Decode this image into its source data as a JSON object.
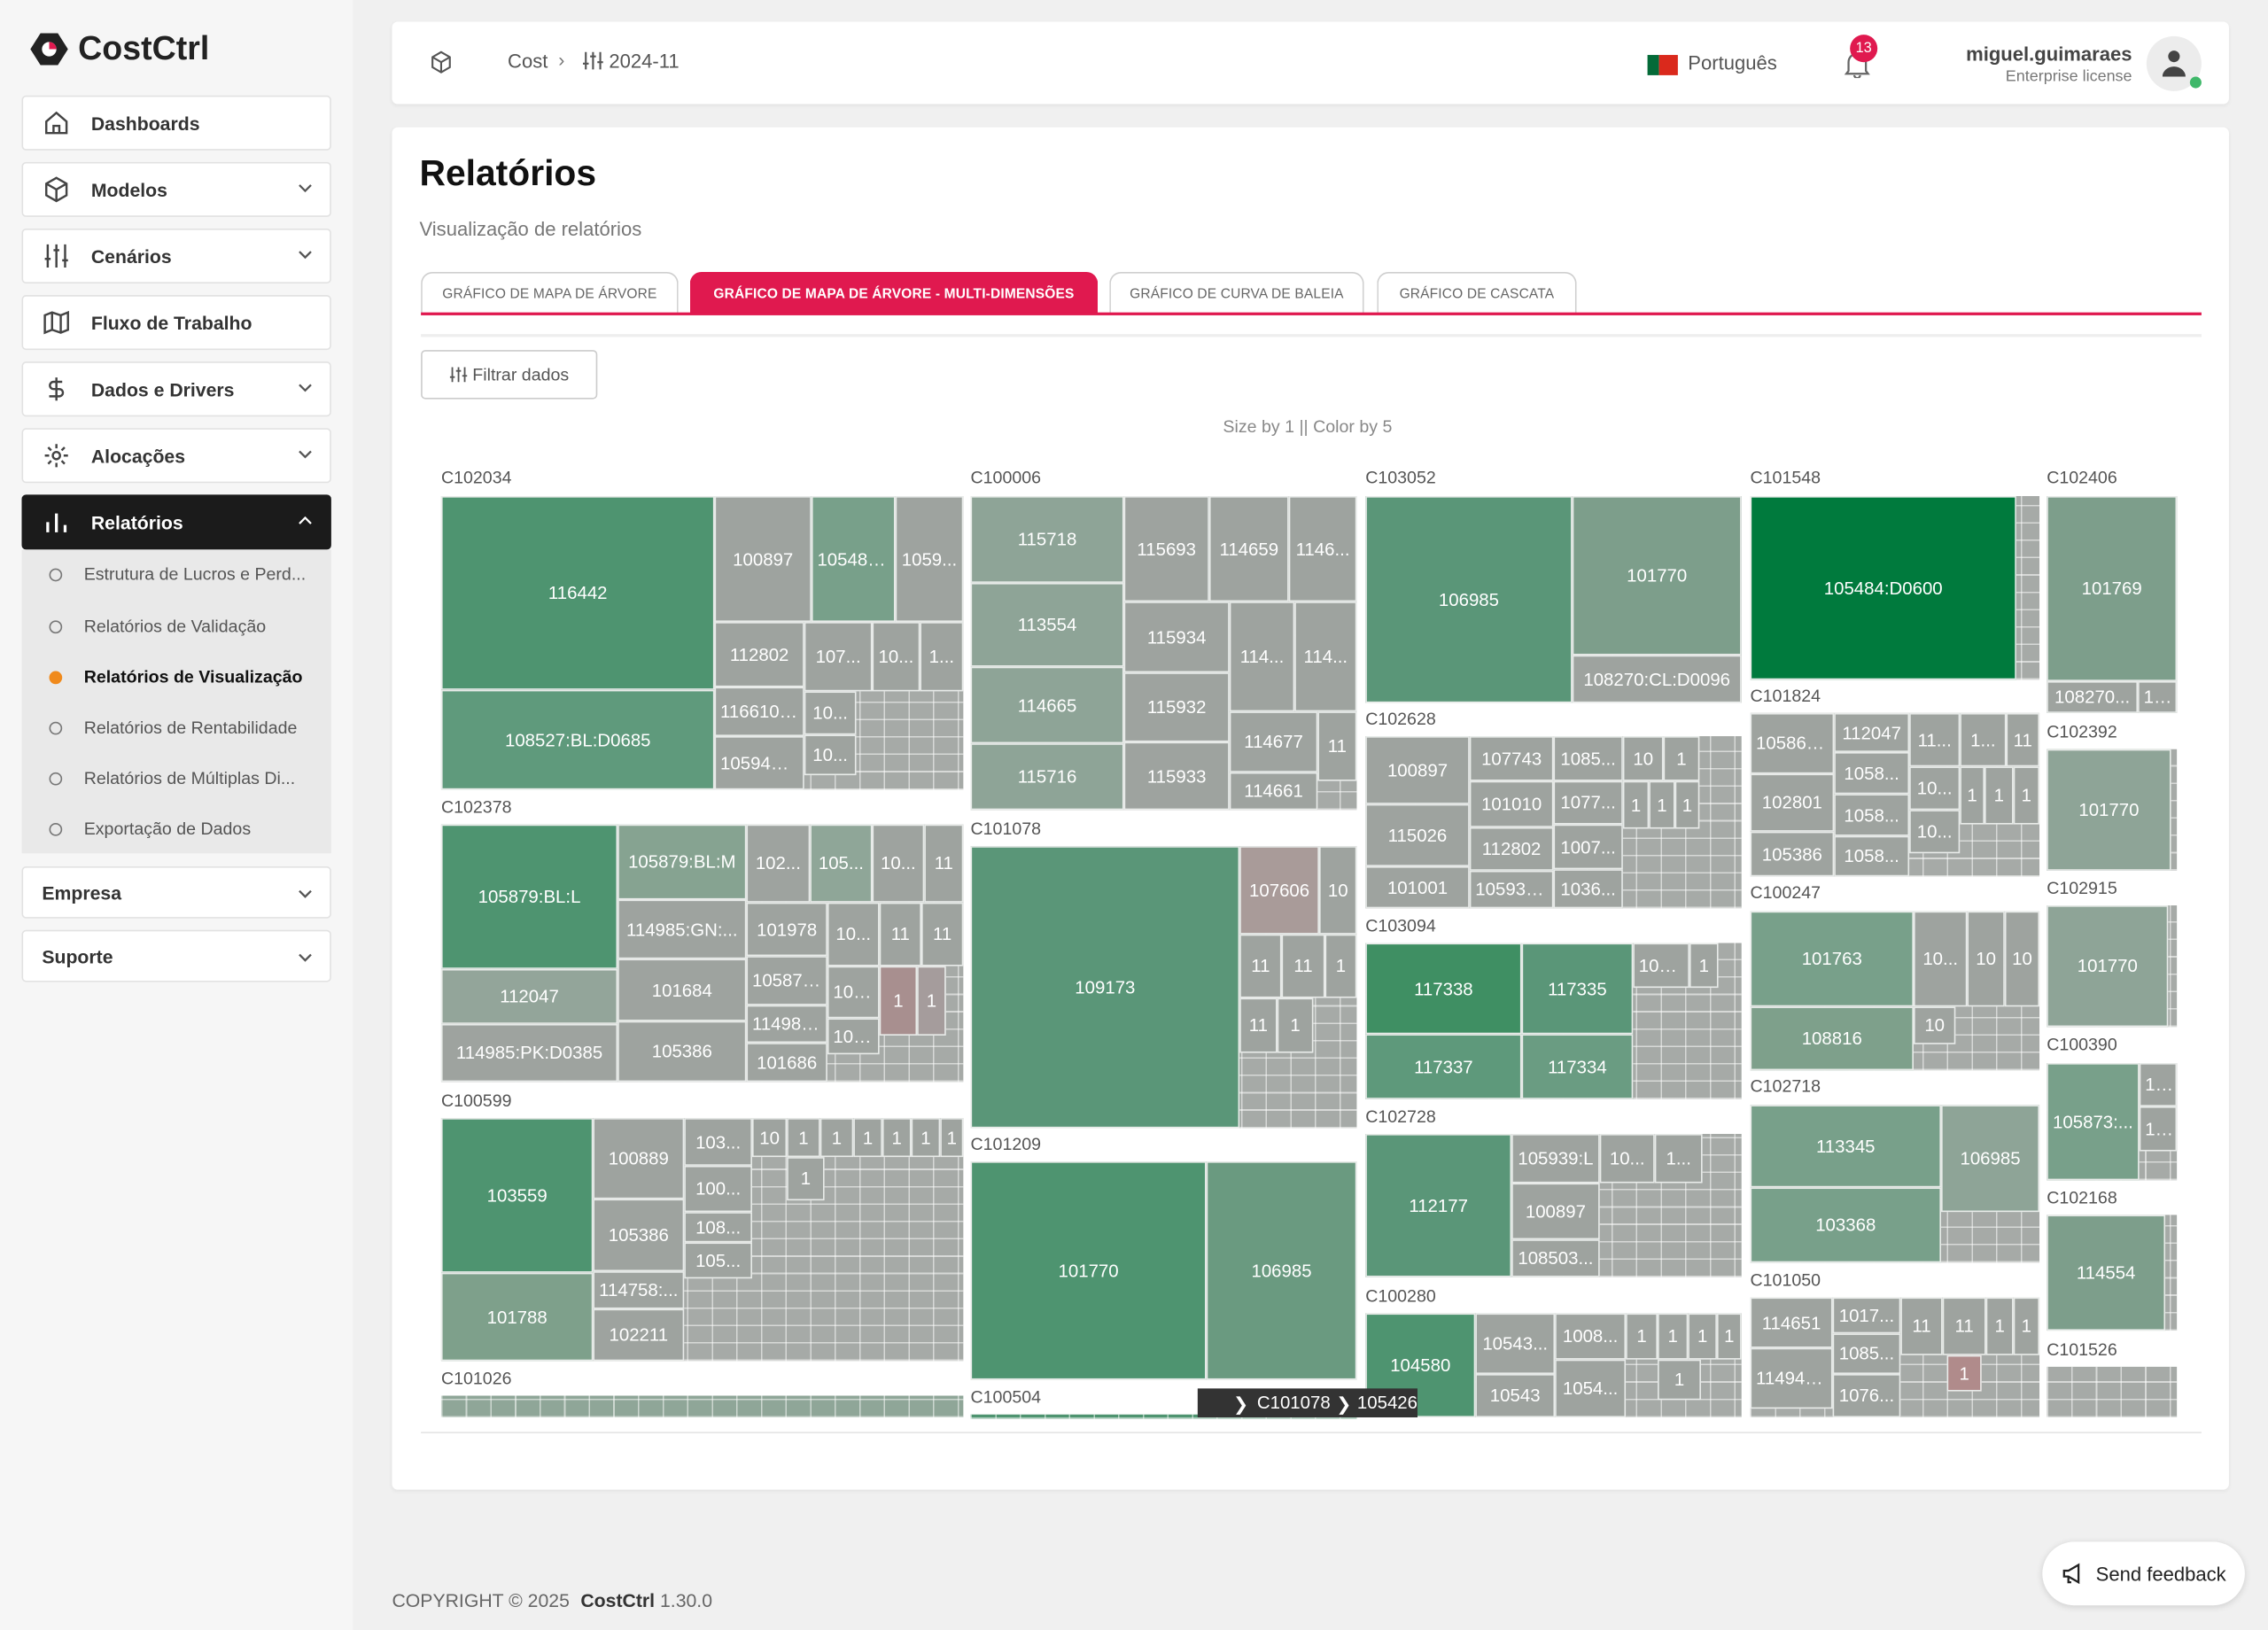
{
  "app": {
    "name": "CostCtrl",
    "version": "1.30.0",
    "copyright": "COPYRIGHT © 2025"
  },
  "sidebar": {
    "items": [
      {
        "label": "Dashboards",
        "icon": "home-icon"
      },
      {
        "label": "Modelos",
        "icon": "cube-icon"
      },
      {
        "label": "Cenários",
        "icon": "sliders-icon"
      },
      {
        "label": "Fluxo de Trabalho",
        "icon": "map-icon"
      },
      {
        "label": "Dados e Drivers",
        "icon": "dollar-icon"
      },
      {
        "label": "Alocações",
        "icon": "gear-icon"
      },
      {
        "label": "Relatórios",
        "icon": "bar-chart-icon"
      }
    ],
    "sub_items": [
      {
        "label": "Estrutura de Lucros e Perd..."
      },
      {
        "label": "Relatórios de Validação"
      },
      {
        "label": "Relatórios de Visualização"
      },
      {
        "label": "Relatórios de Rentabilidade"
      },
      {
        "label": "Relatórios de Múltiplas Di..."
      },
      {
        "label": "Exportação de Dados"
      }
    ],
    "empresa": "Empresa",
    "suporte": "Suporte"
  },
  "header": {
    "breadcrumb": [
      "Cost",
      "2024-11"
    ],
    "language": "Português",
    "notifications": "13",
    "username": "miguel.guimaraes",
    "license": "Enterprise license"
  },
  "page": {
    "title": "Relatórios",
    "subtitle": "Visualização de relatórios",
    "tabs": [
      {
        "label": "GRÁFICO DE MAPA DE ÁRVORE"
      },
      {
        "label": "GRÁFICO DE MAPA DE ÁRVORE - MULTI-DIMENSÕES"
      },
      {
        "label": "GRÁFICO DE CURVA DE BALEIA"
      },
      {
        "label": "GRÁFICO DE CASCATA"
      }
    ],
    "filter_label": "Filtrar dados",
    "accent": "#e0194f"
  },
  "chart_data": {
    "type": "treemap",
    "title": "Size by 1 || Color by 5",
    "default_color": "#9ea39f",
    "breadcrumb": [
      "C101078",
      "105426"
    ],
    "groups": [
      {
        "name": "C102034",
        "tiles": [
          {
            "label": "116442",
            "color": "#4e9470"
          },
          {
            "label": "108527:BL:D0685",
            "color": "#5f9a7c"
          },
          {
            "label": "100897"
          },
          {
            "label": "105489...",
            "color": "#78a08a"
          },
          {
            "label": "1059..."
          },
          {
            "label": "112802"
          },
          {
            "label": "107..."
          },
          {
            "label": "10..."
          },
          {
            "label": "1..."
          },
          {
            "label": "116610:..."
          },
          {
            "label": "105942:..."
          },
          {
            "label": "10..."
          },
          {
            "label": "10..."
          }
        ]
      },
      {
        "name": "C102378",
        "tiles": [
          {
            "label": "105879:BL:L",
            "color": "#4e9470"
          },
          {
            "label": "112047",
            "color": "#93a59a"
          },
          {
            "label": "114985:PK:D0385"
          },
          {
            "label": "105879:BL:M",
            "color": "#86a391"
          },
          {
            "label": "114985:GN:..."
          },
          {
            "label": "101684"
          },
          {
            "label": "105386"
          },
          {
            "label": "102..."
          },
          {
            "label": "105...",
            "color": "#8fa698"
          },
          {
            "label": "10..."
          },
          {
            "label": "11"
          },
          {
            "label": "101978"
          },
          {
            "label": "10..."
          },
          {
            "label": "11"
          },
          {
            "label": "11"
          },
          {
            "label": "105879..."
          },
          {
            "label": "114985..."
          },
          {
            "label": "101686"
          },
          {
            "label": "108..."
          },
          {
            "label": "100..."
          },
          {
            "label": "1",
            "color": "#a88f8f"
          },
          {
            "label": "1",
            "color": "#a59c9c"
          }
        ]
      },
      {
        "name": "C100599",
        "tiles": [
          {
            "label": "103559",
            "color": "#4e9470"
          },
          {
            "label": "101788",
            "color": "#7ea08b"
          },
          {
            "label": "100889"
          },
          {
            "label": "105386"
          },
          {
            "label": "114758:..."
          },
          {
            "label": "102211"
          },
          {
            "label": "103..."
          },
          {
            "label": "100..."
          },
          {
            "label": "108..."
          },
          {
            "label": "105..."
          },
          {
            "label": "10"
          },
          {
            "label": "1"
          },
          {
            "label": "1"
          },
          {
            "label": "1"
          },
          {
            "label": "1"
          },
          {
            "label": "1"
          },
          {
            "label": "1"
          },
          {
            "label": "1"
          }
        ]
      },
      {
        "name": "C101026",
        "area_color": "#8fa698",
        "tiles": []
      },
      {
        "name": "C100006",
        "tiles": [
          {
            "label": "115718",
            "color": "#8ea497"
          },
          {
            "label": "113554",
            "color": "#8ea497"
          },
          {
            "label": "114665",
            "color": "#8ea497"
          },
          {
            "label": "115716",
            "color": "#8ea497"
          },
          {
            "label": "115693"
          },
          {
            "label": "114659"
          },
          {
            "label": "1146..."
          },
          {
            "label": "115934"
          },
          {
            "label": "115932"
          },
          {
            "label": "115933"
          },
          {
            "label": "114..."
          },
          {
            "label": "114..."
          },
          {
            "label": "114677"
          },
          {
            "label": "11"
          },
          {
            "label": "114661"
          }
        ]
      },
      {
        "name": "C101078",
        "tiles": [
          {
            "label": "109173",
            "color": "#5a9678"
          },
          {
            "label": "107606",
            "color": "#a99b99"
          },
          {
            "label": "10"
          },
          {
            "label": "11"
          },
          {
            "label": "11"
          },
          {
            "label": "1"
          },
          {
            "label": "11"
          },
          {
            "label": "1"
          }
        ]
      },
      {
        "name": "C101209",
        "tiles": [
          {
            "label": "101770",
            "color": "#4e9470"
          },
          {
            "label": "106985",
            "color": "#6a9a80"
          }
        ]
      },
      {
        "name": "C100504",
        "area_color": "#4e9470",
        "tiles": []
      },
      {
        "name": "C103052",
        "tiles": [
          {
            "label": "106985",
            "color": "#5a9678"
          },
          {
            "label": "101770",
            "color": "#7d9e8b"
          },
          {
            "label": "108270:CL:D0096"
          }
        ]
      },
      {
        "name": "C102628",
        "tiles": [
          {
            "label": "100897"
          },
          {
            "label": "115026"
          },
          {
            "label": "101001"
          },
          {
            "label": "107743"
          },
          {
            "label": "101010"
          },
          {
            "label": "112802"
          },
          {
            "label": "105938..."
          },
          {
            "label": "1085..."
          },
          {
            "label": "1077..."
          },
          {
            "label": "1007..."
          },
          {
            "label": "1036..."
          },
          {
            "label": "10"
          },
          {
            "label": "1"
          },
          {
            "label": "1"
          },
          {
            "label": "1"
          },
          {
            "label": "1"
          }
        ]
      },
      {
        "name": "C103094",
        "tiles": [
          {
            "label": "117338",
            "color": "#3f8f63"
          },
          {
            "label": "117337",
            "color": "#5e997b"
          },
          {
            "label": "117335",
            "color": "#5a9678"
          },
          {
            "label": "117334",
            "color": "#6a9c82"
          },
          {
            "label": "105..."
          },
          {
            "label": "1"
          }
        ]
      },
      {
        "name": "C102728",
        "tiles": [
          {
            "label": "112177",
            "color": "#5a9678"
          },
          {
            "label": "105939:L"
          },
          {
            "label": "100897"
          },
          {
            "label": "108503..."
          },
          {
            "label": "10..."
          },
          {
            "label": "1..."
          }
        ]
      },
      {
        "name": "C100280",
        "tiles": [
          {
            "label": "104580",
            "color": "#4e9470"
          },
          {
            "label": "10543..."
          },
          {
            "label": "10543"
          },
          {
            "label": "1008..."
          },
          {
            "label": "1054..."
          },
          {
            "label": "1"
          },
          {
            "label": "1"
          },
          {
            "label": "1"
          },
          {
            "label": "1"
          },
          {
            "label": "1"
          }
        ]
      },
      {
        "name": "C101548",
        "tiles": [
          {
            "label": "105484:D0600",
            "color": "#007a3d"
          }
        ]
      },
      {
        "name": "C101824",
        "tiles": [
          {
            "label": "105862..."
          },
          {
            "label": "102801"
          },
          {
            "label": "105386"
          },
          {
            "label": "112047"
          },
          {
            "label": "1058..."
          },
          {
            "label": "1058..."
          },
          {
            "label": "1058..."
          },
          {
            "label": "11..."
          },
          {
            "label": "1..."
          },
          {
            "label": "11"
          },
          {
            "label": "10..."
          },
          {
            "label": "10..."
          },
          {
            "label": "1"
          },
          {
            "label": "1"
          },
          {
            "label": "1"
          }
        ]
      },
      {
        "name": "C100247",
        "tiles": [
          {
            "label": "101763",
            "color": "#78a08a"
          },
          {
            "label": "108816",
            "color": "#7ea08b"
          },
          {
            "label": "10..."
          },
          {
            "label": "10"
          },
          {
            "label": "10"
          },
          {
            "label": "10"
          }
        ]
      },
      {
        "name": "C102718",
        "tiles": [
          {
            "label": "113345",
            "color": "#78a08a"
          },
          {
            "label": "103368",
            "color": "#78a08a"
          },
          {
            "label": "106985",
            "color": "#8ea497"
          }
        ]
      },
      {
        "name": "C101050",
        "tiles": [
          {
            "label": "114651"
          },
          {
            "label": "114941..."
          },
          {
            "label": "1017..."
          },
          {
            "label": "1085..."
          },
          {
            "label": "1076..."
          },
          {
            "label": "11"
          },
          {
            "label": "11"
          },
          {
            "label": "1"
          },
          {
            "label": "1"
          },
          {
            "label": "1",
            "color": "#b08b8b"
          }
        ]
      },
      {
        "name": "C102406",
        "tiles": [
          {
            "label": "101769",
            "color": "#7d9e8b"
          },
          {
            "label": "108270..."
          },
          {
            "label": "105..."
          }
        ]
      },
      {
        "name": "C102392",
        "tiles": [
          {
            "label": "101770",
            "color": "#8ea497"
          }
        ]
      },
      {
        "name": "C102915",
        "tiles": [
          {
            "label": "101770",
            "color": "#8ea497"
          }
        ]
      },
      {
        "name": "C100390",
        "tiles": [
          {
            "label": "105873:...",
            "color": "#78a08a"
          },
          {
            "label": "102"
          },
          {
            "label": "102"
          }
        ]
      },
      {
        "name": "C102168",
        "tiles": [
          {
            "label": "114554",
            "color": "#7d9e8b"
          }
        ]
      },
      {
        "name": "C101526",
        "tiles": []
      }
    ]
  },
  "feedback": {
    "label": "Send feedback"
  }
}
